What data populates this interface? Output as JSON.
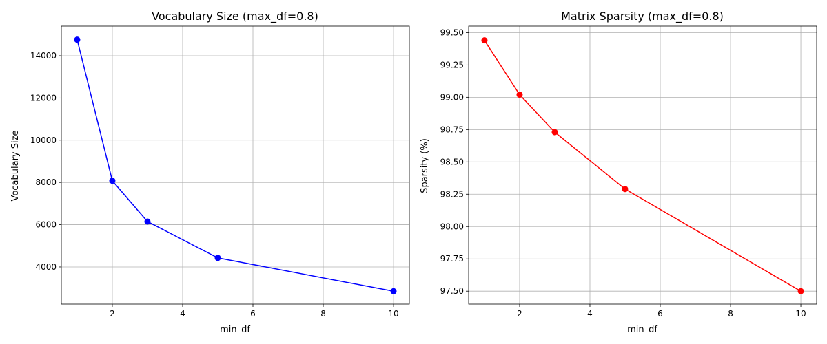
{
  "chart_data": [
    {
      "type": "line",
      "title": "Vocabulary Size (max_df=0.8)",
      "xlabel": "min_df",
      "ylabel": "Vocabulary Size",
      "x": [
        1,
        2,
        3,
        5,
        10
      ],
      "series": [
        {
          "values": [
            14760,
            8080,
            6150,
            4430,
            2850
          ],
          "color": "#0000ff",
          "marker": "circle"
        }
      ],
      "xlim": [
        0.55,
        10.45
      ],
      "ylim": [
        2240,
        15400
      ],
      "xticks": [
        2,
        4,
        6,
        8,
        10
      ],
      "yticks": [
        4000,
        6000,
        8000,
        10000,
        12000,
        14000
      ],
      "xtick_labels": [
        "2",
        "4",
        "6",
        "8",
        "10"
      ],
      "ytick_labels": [
        "4000",
        "6000",
        "8000",
        "10000",
        "12000",
        "14000"
      ],
      "grid": true
    },
    {
      "type": "line",
      "title": "Matrix Sparsity (max_df=0.8)",
      "xlabel": "min_df",
      "ylabel": "Sparsity (%)",
      "x": [
        1,
        2,
        3,
        5,
        10
      ],
      "series": [
        {
          "values": [
            99.44,
            99.02,
            98.73,
            98.29,
            97.5
          ],
          "color": "#ff0000",
          "marker": "circle"
        }
      ],
      "xlim": [
        0.55,
        10.45
      ],
      "ylim": [
        97.4,
        99.55
      ],
      "xticks": [
        2,
        4,
        6,
        8,
        10
      ],
      "yticks": [
        97.5,
        97.75,
        98.0,
        98.25,
        98.5,
        98.75,
        99.0,
        99.25,
        99.5
      ],
      "xtick_labels": [
        "2",
        "4",
        "6",
        "8",
        "10"
      ],
      "ytick_labels": [
        "97.50",
        "97.75",
        "98.00",
        "98.25",
        "98.50",
        "98.75",
        "99.00",
        "99.25",
        "99.50"
      ],
      "grid": true
    }
  ]
}
